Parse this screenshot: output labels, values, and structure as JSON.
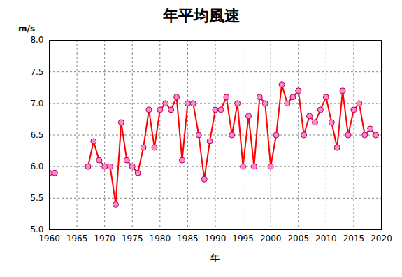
{
  "chart_data": {
    "type": "line",
    "title": "年平均風速",
    "x_label": "年",
    "y_label": "m/s",
    "x": [
      1960,
      1961,
      1962,
      1963,
      1964,
      1965,
      1966,
      1967,
      1968,
      1969,
      1970,
      1971,
      1972,
      1973,
      1974,
      1975,
      1976,
      1977,
      1978,
      1979,
      1980,
      1981,
      1982,
      1983,
      1984,
      1985,
      1986,
      1987,
      1988,
      1989,
      1990,
      1991,
      1992,
      1993,
      1994,
      1995,
      1996,
      1997,
      1998,
      1999,
      2000,
      2001,
      2002,
      2003,
      2004,
      2005,
      2006,
      2007,
      2008,
      2009,
      2010,
      2011,
      2012,
      2013,
      2014,
      2015,
      2016,
      2017,
      2018,
      2019
    ],
    "values": [
      5.9,
      5.9,
      null,
      null,
      null,
      null,
      null,
      6.0,
      6.4,
      6.1,
      6.0,
      6.0,
      5.4,
      6.7,
      6.1,
      6.0,
      5.9,
      6.3,
      6.9,
      6.3,
      6.9,
      7.0,
      6.9,
      7.1,
      6.1,
      7.0,
      7.0,
      6.5,
      5.8,
      6.4,
      6.9,
      6.9,
      7.1,
      6.5,
      7.0,
      6.0,
      6.8,
      6.0,
      7.1,
      7.0,
      6.0,
      6.5,
      7.3,
      7.0,
      7.1,
      7.2,
      6.5,
      6.8,
      6.7,
      6.9,
      7.1,
      6.7,
      6.3,
      7.2,
      6.5,
      6.9,
      7.0,
      6.5,
      6.6,
      6.5
    ],
    "color": "#ff0000",
    "marker": "circle",
    "xlim": [
      1960,
      2020
    ],
    "xticks": [
      1960,
      1965,
      1970,
      1975,
      1980,
      1985,
      1990,
      1995,
      2000,
      2005,
      2010,
      2015,
      2020
    ],
    "ylim": [
      5,
      8
    ],
    "yticks": [
      {
        "value": 5,
        "label": "5.0"
      },
      5.5,
      {
        "value": 6,
        "label": "6.0"
      },
      6.5,
      {
        "value": 7,
        "label": "7.0"
      },
      7.5,
      {
        "value": 8,
        "label": "8.0"
      }
    ],
    "grid": true
  }
}
